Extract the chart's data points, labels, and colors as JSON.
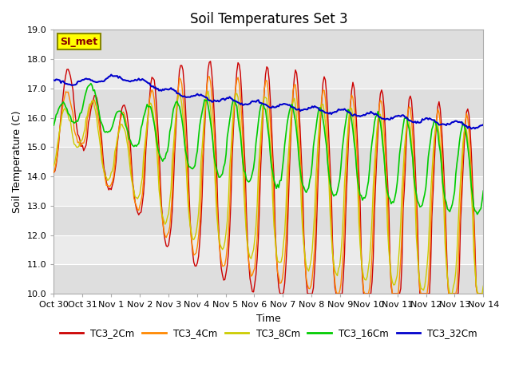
{
  "title": "Soil Temperatures Set 3",
  "xlabel": "Time",
  "ylabel": "Soil Temperature (C)",
  "ylim": [
    10.0,
    19.0
  ],
  "yticks": [
    10.0,
    11.0,
    12.0,
    13.0,
    14.0,
    15.0,
    16.0,
    17.0,
    18.0,
    19.0
  ],
  "xtick_labels": [
    "Oct 30",
    "Oct 31",
    "Nov 1",
    "Nov 2",
    "Nov 3",
    "Nov 4",
    "Nov 5",
    "Nov 6",
    "Nov 7",
    "Nov 8",
    "Nov 9",
    "Nov 10",
    "Nov 11",
    "Nov 12",
    "Nov 13",
    "Nov 14"
  ],
  "series_colors": [
    "#cc0000",
    "#ff8800",
    "#cccc00",
    "#00cc00",
    "#0000cc"
  ],
  "series_names": [
    "TC3_2Cm",
    "TC3_4Cm",
    "TC3_8Cm",
    "TC3_16Cm",
    "TC3_32Cm"
  ],
  "series_linewidths": [
    1.0,
    1.0,
    1.0,
    1.2,
    1.5
  ],
  "background_color": "#ffffff",
  "plot_bg_color_light": "#ebebeb",
  "plot_bg_color_dark": "#dedede",
  "grid_color": "#ffffff",
  "annotation_text": "SI_met",
  "annotation_bg": "#ffff00",
  "annotation_border": "#888800",
  "title_fontsize": 12,
  "axis_label_fontsize": 9,
  "tick_fontsize": 8
}
